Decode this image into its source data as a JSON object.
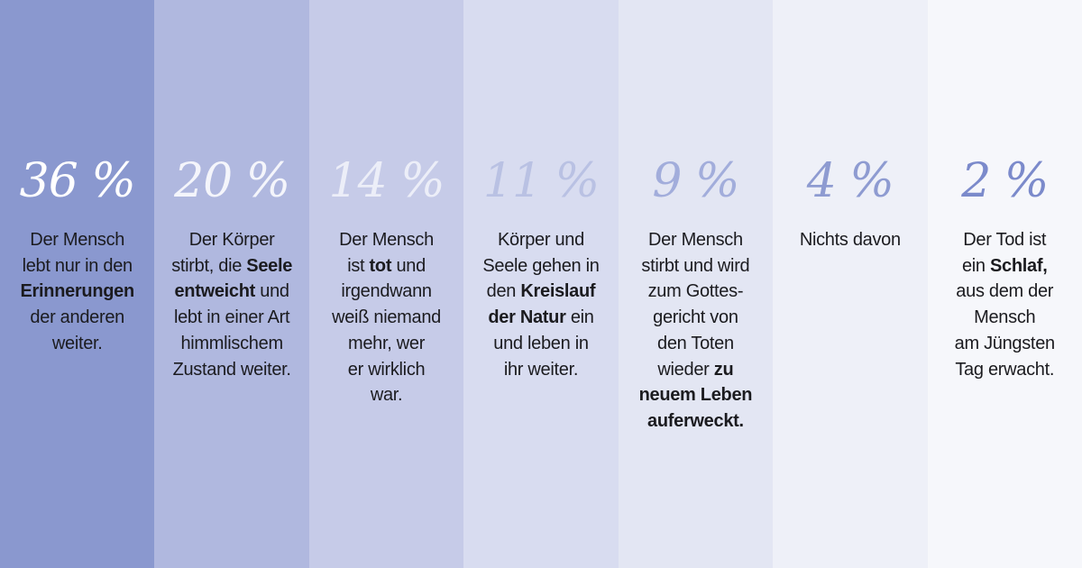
{
  "chart_data": {
    "type": "bar",
    "title": "",
    "unit": "%",
    "values": [
      36,
      20,
      14,
      11,
      9,
      4,
      2
    ],
    "labels": [
      "36 %",
      "20 %",
      "14 %",
      "11 %",
      "9 %",
      "4 %",
      "2 %"
    ],
    "column_colors": [
      "#8a98cf",
      "#b0b8df",
      "#c6cbe8",
      "#d8dcf0",
      "#e3e6f3",
      "#eef0f8",
      "#f6f7fb"
    ],
    "label_colors": [
      "#ffffff",
      "#f4f5fb",
      "#eceef8",
      "#b9c1e3",
      "#a2addb",
      "#8e9bd1",
      "#7b8acb"
    ],
    "categories": [
      [
        [
          {
            "t": "Der Mensch"
          }
        ],
        [
          {
            "t": "lebt nur in den"
          }
        ],
        [
          {
            "t": "Erinnerungen",
            "b": true
          }
        ],
        [
          {
            "t": "der anderen"
          }
        ],
        [
          {
            "t": "weiter."
          }
        ]
      ],
      [
        [
          {
            "t": "Der Körper"
          }
        ],
        [
          {
            "t": "stirbt, die "
          },
          {
            "t": "Seele",
            "b": true
          }
        ],
        [
          {
            "t": "entweicht",
            "b": true
          },
          {
            "t": " und"
          }
        ],
        [
          {
            "t": "lebt in einer Art"
          }
        ],
        [
          {
            "t": "himmlischem"
          }
        ],
        [
          {
            "t": "Zustand weiter."
          }
        ]
      ],
      [
        [
          {
            "t": "Der Mensch"
          }
        ],
        [
          {
            "t": "ist "
          },
          {
            "t": "tot",
            "b": true
          },
          {
            "t": " und"
          }
        ],
        [
          {
            "t": "irgendwann"
          }
        ],
        [
          {
            "t": "weiß niemand"
          }
        ],
        [
          {
            "t": "mehr, wer"
          }
        ],
        [
          {
            "t": "er wirklich"
          }
        ],
        [
          {
            "t": "war."
          }
        ]
      ],
      [
        [
          {
            "t": "Körper und"
          }
        ],
        [
          {
            "t": "Seele gehen in"
          }
        ],
        [
          {
            "t": "den "
          },
          {
            "t": "Kreislauf",
            "b": true
          }
        ],
        [
          {
            "t": "der Natur",
            "b": true
          },
          {
            "t": " ein"
          }
        ],
        [
          {
            "t": "und leben in"
          }
        ],
        [
          {
            "t": "ihr weiter."
          }
        ]
      ],
      [
        [
          {
            "t": "Der Mensch"
          }
        ],
        [
          {
            "t": "stirbt und wird"
          }
        ],
        [
          {
            "t": "zum Gottes-"
          }
        ],
        [
          {
            "t": "gericht von"
          }
        ],
        [
          {
            "t": "den Toten"
          }
        ],
        [
          {
            "t": "wieder "
          },
          {
            "t": "zu",
            "b": true
          }
        ],
        [
          {
            "t": "neuem Leben",
            "b": true
          }
        ],
        [
          {
            "t": "auferweckt.",
            "b": true
          }
        ]
      ],
      [
        [
          {
            "t": "Nichts davon"
          }
        ]
      ],
      [
        [
          {
            "t": "Der Tod ist"
          }
        ],
        [
          {
            "t": "ein "
          },
          {
            "t": "Schlaf,",
            "b": true
          }
        ],
        [
          {
            "t": "aus dem der"
          }
        ],
        [
          {
            "t": "Mensch"
          }
        ],
        [
          {
            "t": "am Jüngsten"
          }
        ],
        [
          {
            "t": "Tag erwacht."
          }
        ]
      ]
    ]
  }
}
